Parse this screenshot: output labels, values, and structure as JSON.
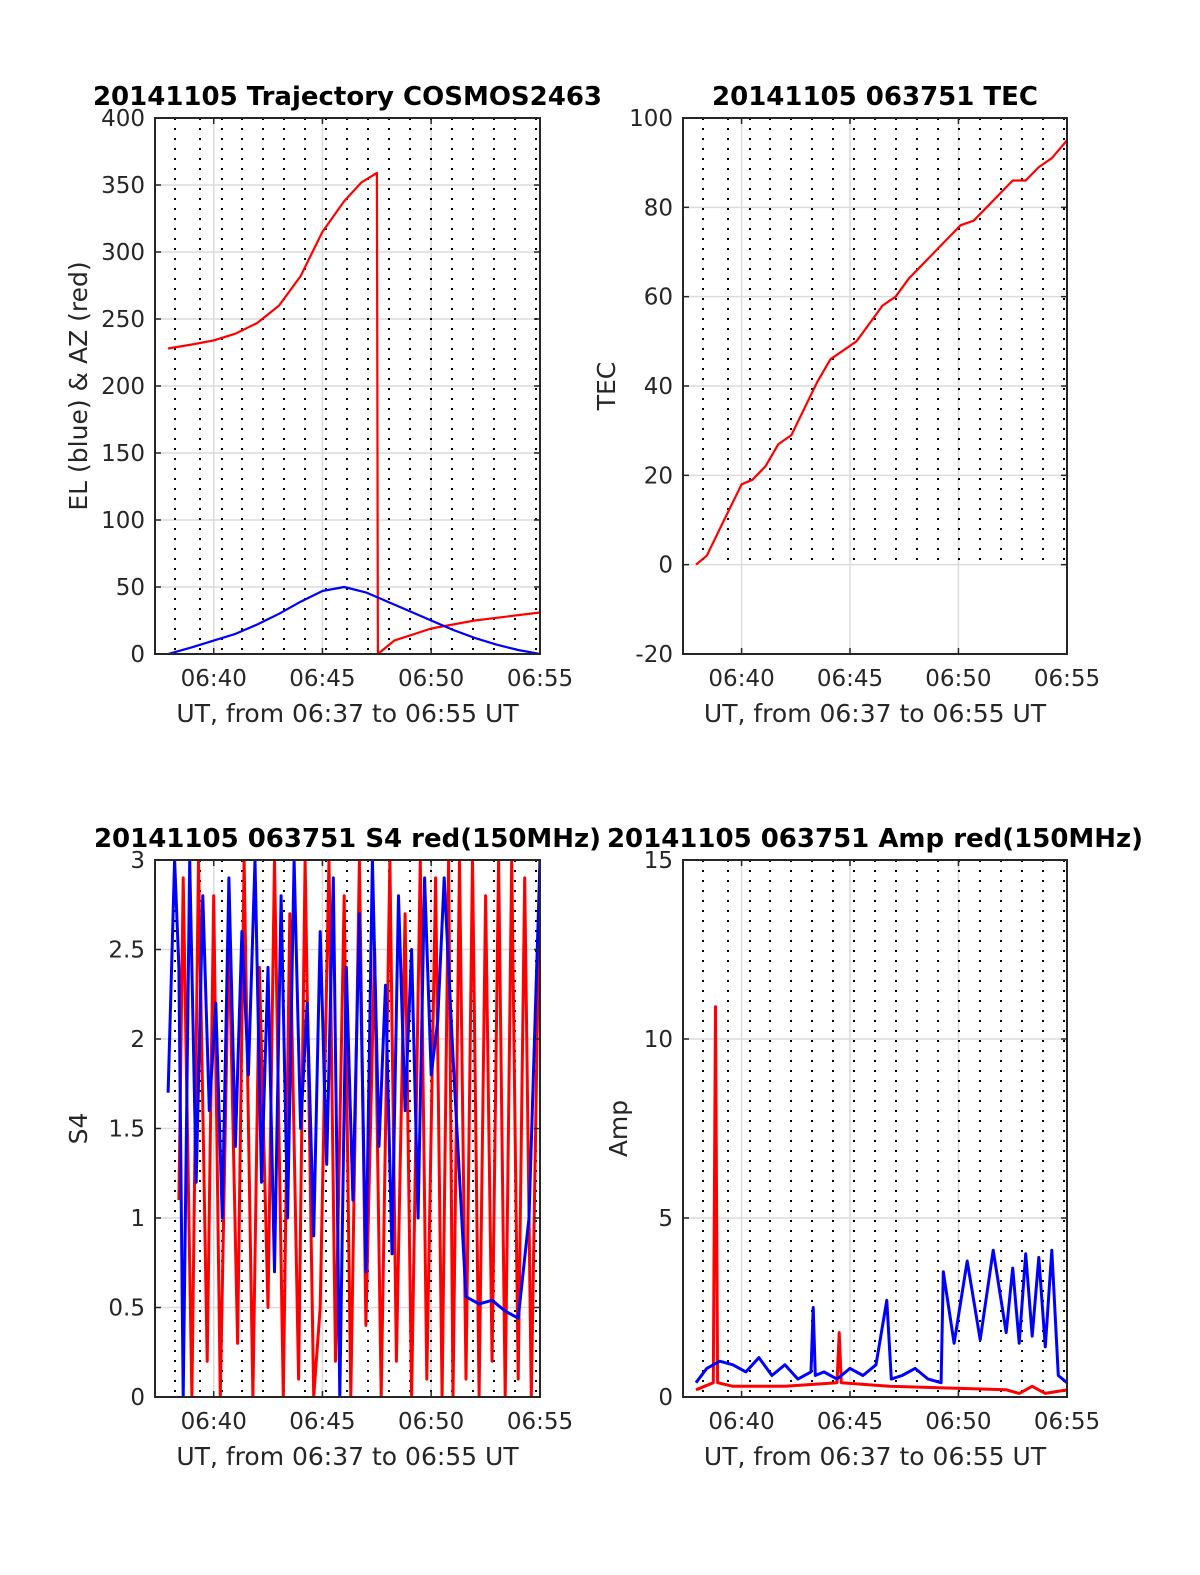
{
  "colors": {
    "el": "#0000ff",
    "az": "#ff0000",
    "grid": "#dcdcdc",
    "axis": "#262626"
  },
  "chart_data": [
    {
      "id": "trajectory",
      "type": "line",
      "title": "20141105 Trajectory COSMOS2463",
      "xlabel": "UT, from 06:37 to 06:55 UT",
      "ylabel": "EL (blue) & AZ (red)",
      "xlim": [
        6.6217,
        6.9167
      ],
      "ylim": [
        0,
        400
      ],
      "xticks": [
        6.6667,
        6.75,
        6.8333,
        6.9167
      ],
      "xticklabels": [
        "06:40",
        "06:45",
        "06:50",
        "06:55"
      ],
      "yticks": [
        0,
        50,
        100,
        150,
        200,
        250,
        300,
        350,
        400
      ],
      "yticklabels": [
        "0",
        "50",
        "100",
        "150",
        "200",
        "250",
        "300",
        "350",
        "400"
      ],
      "grid": true,
      "series": [
        {
          "color": "#ff0000",
          "x": [
            6.6317,
            6.65,
            6.6667,
            6.6833,
            6.7,
            6.7167,
            6.7333,
            6.75,
            6.7667,
            6.78,
            6.7917,
            6.7925,
            6.805,
            6.8333,
            6.8667,
            6.9167
          ],
          "y": [
            228,
            231,
            234,
            239,
            247,
            260,
            282,
            315,
            338,
            352,
            359,
            0,
            10,
            19,
            25,
            31
          ]
        },
        {
          "color": "#0000ff",
          "x": [
            6.6317,
            6.65,
            6.6667,
            6.6833,
            6.7,
            6.7167,
            6.7333,
            6.75,
            6.7667,
            6.7833,
            6.8,
            6.8167,
            6.8333,
            6.85,
            6.8667,
            6.8833,
            6.9,
            6.9167
          ],
          "y": [
            0,
            5,
            10,
            15,
            22,
            30,
            39,
            47,
            50,
            46,
            39,
            32,
            25,
            18,
            12,
            7,
            3,
            0
          ]
        }
      ]
    },
    {
      "id": "tec",
      "type": "line",
      "title": "20141105 063751 TEC",
      "xlabel": "UT, from 06:37 to 06:55 UT",
      "ylabel": "TEC",
      "xlim": [
        6.6217,
        6.9167
      ],
      "ylim": [
        -20,
        100
      ],
      "xticks": [
        6.6667,
        6.75,
        6.8333,
        6.9167
      ],
      "xticklabels": [
        "06:40",
        "06:45",
        "06:50",
        "06:55"
      ],
      "yticks": [
        -20,
        0,
        20,
        40,
        60,
        80,
        100
      ],
      "yticklabels": [
        "-20",
        "0",
        "20",
        "40",
        "60",
        "80",
        "100"
      ],
      "grid": true,
      "series": [
        {
          "color": "#ff0000",
          "x": [
            6.6317,
            6.64,
            6.65,
            6.66,
            6.6667,
            6.675,
            6.685,
            6.695,
            6.705,
            6.715,
            6.725,
            6.735,
            6.745,
            6.755,
            6.765,
            6.775,
            6.785,
            6.795,
            6.805,
            6.815,
            6.825,
            6.835,
            6.845,
            6.855,
            6.865,
            6.875,
            6.885,
            6.895,
            6.905,
            6.9167
          ],
          "y": [
            0,
            2,
            8,
            14,
            18,
            19,
            22,
            27,
            29,
            35,
            41,
            46,
            48,
            50,
            54,
            58,
            60,
            64,
            67,
            70,
            73,
            76,
            77,
            80,
            83,
            86,
            86,
            89,
            91,
            95
          ]
        }
      ]
    },
    {
      "id": "s4",
      "type": "line",
      "title": "20141105 063751 S4 red(150MHz)",
      "xlabel": "UT, from 06:37 to 06:55 UT",
      "ylabel": "S4",
      "xlim": [
        6.6217,
        6.9167
      ],
      "ylim": [
        0,
        3
      ],
      "xticks": [
        6.6667,
        6.75,
        6.8333,
        6.9167
      ],
      "xticklabels": [
        "06:40",
        "06:45",
        "06:50",
        "06:55"
      ],
      "yticks": [
        0,
        0.5,
        1,
        1.5,
        2,
        2.5,
        3
      ],
      "yticklabels": [
        "0",
        "0.5",
        "1",
        "1.5",
        "2",
        "2.5",
        "3"
      ],
      "grid": true,
      "series": [
        {
          "color": "#ff0000",
          "x": [
            6.64,
            6.6433,
            6.65,
            6.655,
            6.6617,
            6.6667,
            6.6717,
            6.6783,
            6.685,
            6.69,
            6.6967,
            6.7017,
            6.7083,
            6.7133,
            6.72,
            6.725,
            6.7317,
            6.7367,
            6.7433,
            6.7483,
            6.755,
            6.76,
            6.7667,
            6.7717,
            6.7783,
            6.7833,
            6.79,
            6.795,
            6.8017,
            6.8067,
            6.8133,
            6.8183,
            6.825,
            6.83,
            6.8367,
            6.8417,
            6.8467,
            6.85,
            6.855,
            6.86,
            6.865,
            6.87,
            6.875,
            6.88,
            6.885,
            6.89,
            6.895,
            6.9,
            6.905,
            6.91,
            6.9167
          ],
          "y": [
            1.1,
            2.9,
            0,
            3,
            0.2,
            2.8,
            0,
            2.6,
            0.3,
            3,
            0,
            2.4,
            0.5,
            3,
            0,
            2.7,
            0.1,
            3,
            0,
            0.5,
            3,
            0.2,
            2.8,
            0,
            3,
            0.4,
            2.5,
            0,
            3,
            0.2,
            2.7,
            0,
            3,
            0.1,
            2.9,
            0,
            3,
            0,
            3,
            0.1,
            3,
            0,
            2.8,
            0.2,
            3,
            0,
            3,
            0.1,
            2.9,
            0,
            3
          ]
        },
        {
          "color": "#0000ff",
          "x": [
            6.6317,
            6.6367,
            6.64,
            6.6433,
            6.6483,
            6.6533,
            6.6583,
            6.6633,
            6.6683,
            6.6733,
            6.6783,
            6.6833,
            6.6883,
            6.6933,
            6.6983,
            6.7033,
            6.7083,
            6.7133,
            6.7183,
            6.7233,
            6.7283,
            6.7333,
            6.7383,
            6.7433,
            6.7483,
            6.7533,
            6.7583,
            6.7633,
            6.7683,
            6.7733,
            6.7783,
            6.7833,
            6.7883,
            6.7933,
            6.7983,
            6.8033,
            6.8083,
            6.8133,
            6.8183,
            6.8233,
            6.8283,
            6.8333,
            6.8383,
            6.8433,
            6.85,
            6.86,
            6.87,
            6.88,
            6.89,
            6.9,
            6.9083,
            6.9167
          ],
          "y": [
            1.7,
            3,
            2.4,
            0,
            3,
            1.2,
            2.8,
            1.6,
            2.2,
            1.0,
            2.9,
            1.4,
            2.6,
            1.8,
            3,
            1.2,
            2.4,
            0.7,
            2.8,
            1.0,
            3,
            1.5,
            2.2,
            0.9,
            2.6,
            1.3,
            2.9,
            0,
            2.4,
            1.1,
            2.7,
            0.7,
            3,
            1.4,
            2.3,
            0.8,
            2.8,
            1.6,
            2.5,
            1.0,
            2.9,
            1.8,
            2.1,
            2.9,
            1.9,
            0.56,
            0.52,
            0.54,
            0.48,
            0.44,
            1.0,
            3
          ]
        }
      ]
    },
    {
      "id": "amp",
      "type": "line",
      "title": "20141105 063751 Amp red(150MHz)",
      "xlabel": "UT, from 06:37 to 06:55 UT",
      "ylabel": "Amp",
      "xlim": [
        6.6217,
        6.9167
      ],
      "ylim": [
        0,
        15
      ],
      "xticks": [
        6.6667,
        6.75,
        6.8333,
        6.9167
      ],
      "xticklabels": [
        "06:40",
        "06:45",
        "06:50",
        "06:55"
      ],
      "yticks": [
        0,
        5,
        10,
        15
      ],
      "yticklabels": [
        "0",
        "5",
        "10",
        "15"
      ],
      "grid": true,
      "series": [
        {
          "color": "#ff0000",
          "x": [
            6.6317,
            6.645,
            6.6467,
            6.6483,
            6.66,
            6.7,
            6.74,
            6.7417,
            6.7433,
            6.78,
            6.87,
            6.88,
            6.89,
            6.9,
            6.9167
          ],
          "y": [
            0.2,
            0.4,
            10.9,
            0.4,
            0.3,
            0.3,
            0.4,
            1.8,
            0.4,
            0.3,
            0.2,
            0.1,
            0.3,
            0.1,
            0.2
          ]
        },
        {
          "color": "#0000ff",
          "x": [
            6.6317,
            6.64,
            6.65,
            6.66,
            6.67,
            6.68,
            6.69,
            6.7,
            6.71,
            6.72,
            6.7217,
            6.7233,
            6.73,
            6.74,
            6.75,
            6.76,
            6.77,
            6.7783,
            6.7817,
            6.79,
            6.8,
            6.81,
            6.82,
            6.8217,
            6.83,
            6.84,
            6.85,
            6.86,
            6.87,
            6.875,
            6.88,
            6.885,
            6.89,
            6.895,
            6.9,
            6.905,
            6.91,
            6.9167
          ],
          "y": [
            0.4,
            0.8,
            1.0,
            0.9,
            0.7,
            1.1,
            0.6,
            0.9,
            0.5,
            0.7,
            2.5,
            0.6,
            0.7,
            0.5,
            0.8,
            0.6,
            0.9,
            2.7,
            0.5,
            0.6,
            0.8,
            0.5,
            0.4,
            3.5,
            1.5,
            3.8,
            1.6,
            4.1,
            1.8,
            3.6,
            1.5,
            4.0,
            1.7,
            3.9,
            1.4,
            4.1,
            0.6,
            0.4
          ]
        }
      ]
    }
  ]
}
